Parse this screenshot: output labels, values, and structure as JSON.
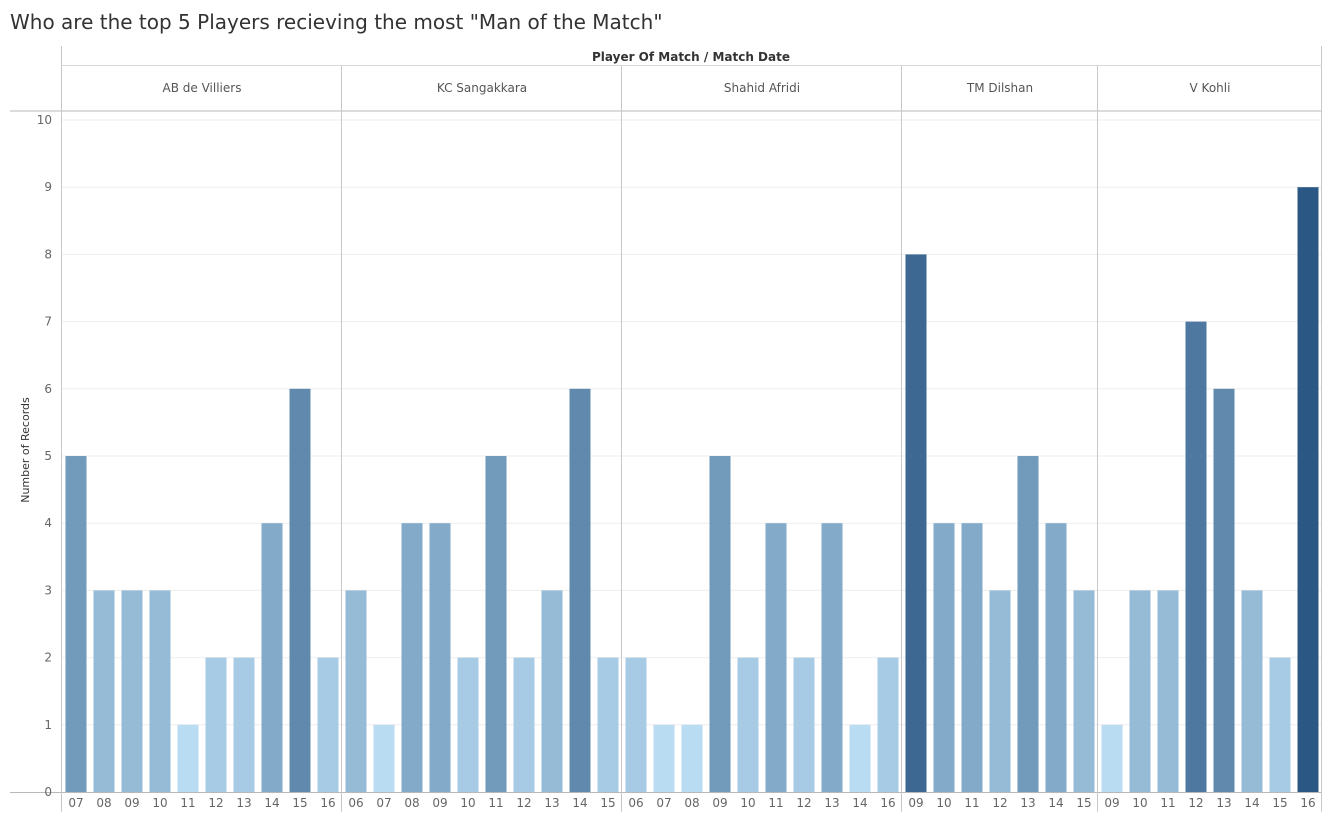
{
  "chart_data": {
    "type": "bar",
    "title": "Who are the top 5 Players recieving the most \"Man of the Match\"",
    "header_label": "Player Of Match  /  Match Date",
    "ylabel": "Number of Records",
    "ylim": [
      0,
      10
    ],
    "yticks": [
      0,
      1,
      2,
      3,
      4,
      5,
      6,
      7,
      8,
      9,
      10
    ],
    "color_scale": [
      "#b9dcf2",
      "#2a5783"
    ],
    "panels": [
      {
        "name": "AB de Villiers",
        "categories": [
          "07",
          "08",
          "09",
          "10",
          "11",
          "12",
          "13",
          "14",
          "15",
          "16"
        ],
        "values": [
          5,
          3,
          3,
          3,
          1,
          2,
          2,
          4,
          6,
          2
        ]
      },
      {
        "name": "KC Sangakkara",
        "categories": [
          "06",
          "07",
          "08",
          "09",
          "10",
          "11",
          "12",
          "13",
          "14",
          "15"
        ],
        "values": [
          3,
          1,
          4,
          4,
          2,
          5,
          2,
          3,
          6,
          2
        ]
      },
      {
        "name": "Shahid Afridi",
        "categories": [
          "06",
          "07",
          "08",
          "09",
          "10",
          "11",
          "12",
          "13",
          "14",
          "16"
        ],
        "values": [
          2,
          1,
          1,
          5,
          2,
          4,
          2,
          4,
          1,
          2
        ]
      },
      {
        "name": "TM Dilshan",
        "categories": [
          "09",
          "10",
          "11",
          "12",
          "13",
          "14",
          "15"
        ],
        "values": [
          8,
          4,
          4,
          3,
          5,
          4,
          3
        ]
      },
      {
        "name": "V Kohli",
        "categories": [
          "09",
          "10",
          "11",
          "12",
          "13",
          "14",
          "15",
          "16"
        ],
        "values": [
          1,
          3,
          3,
          7,
          6,
          3,
          2,
          9
        ]
      }
    ]
  }
}
